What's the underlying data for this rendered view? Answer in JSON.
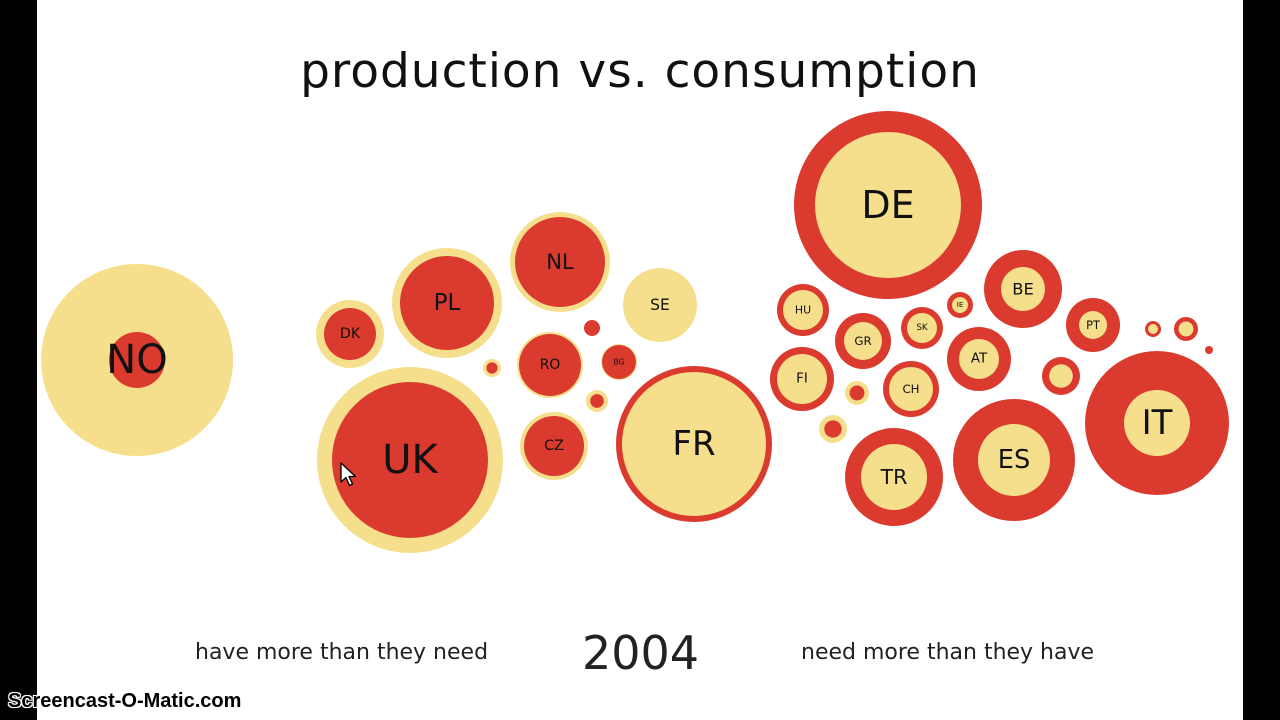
{
  "title": "production vs. consumption",
  "year": "2004",
  "left_caption": "have more than they need",
  "right_caption": "need more than they have",
  "watermark": "Screencast-O-Matic.com",
  "colors": {
    "production": "#db3a2f",
    "consumption": "#f5df8d",
    "label": "#111111"
  },
  "chart_data": {
    "type": "bubble",
    "title": "production vs. consumption",
    "year": "2004",
    "groups": [
      "have more than they need",
      "need more than they have"
    ],
    "items": [
      {
        "label": "NO",
        "group": "have more than they need",
        "outer": "consumption",
        "inner": "production",
        "outer_radius": 96,
        "inner_radius": 28
      },
      {
        "label": "DK",
        "group": "have more than they need",
        "outer": "consumption",
        "inner": "production",
        "outer_radius": 34,
        "inner_radius": 26
      },
      {
        "label": "PL",
        "group": "have more than they need",
        "outer": "consumption",
        "inner": "production",
        "outer_radius": 55,
        "inner_radius": 47
      },
      {
        "label": "NL",
        "group": "have more than they need",
        "outer": "consumption",
        "inner": "production",
        "outer_radius": 50,
        "inner_radius": 45
      },
      {
        "label": "SE",
        "group": "have more than they need",
        "outer": "consumption",
        "inner": "production",
        "outer_radius": 37,
        "inner_radius": 0
      },
      {
        "label": "RO",
        "group": "have more than they need",
        "outer": "consumption",
        "inner": "production",
        "outer_radius": 33,
        "inner_radius": 31
      },
      {
        "label": "BG",
        "group": "have more than they need",
        "outer": "consumption",
        "inner": "production",
        "outer_radius": 18,
        "inner_radius": 17
      },
      {
        "label": "CZ",
        "group": "have more than they need",
        "outer": "consumption",
        "inner": "production",
        "outer_radius": 34,
        "inner_radius": 30
      },
      {
        "label": "UK",
        "group": "have more than they need",
        "outer": "consumption",
        "inner": "production",
        "outer_radius": 93,
        "inner_radius": 78
      },
      {
        "label": "FR",
        "group": "need more than they have",
        "outer": "production",
        "inner": "consumption",
        "outer_radius": 78,
        "inner_radius": 72
      },
      {
        "label": "DE",
        "group": "need more than they have",
        "outer": "production",
        "inner": "consumption",
        "outer_radius": 94,
        "inner_radius": 73
      },
      {
        "label": "BE",
        "group": "need more than they have",
        "outer": "production",
        "inner": "consumption",
        "outer_radius": 39,
        "inner_radius": 22
      },
      {
        "label": "PT",
        "group": "need more than they have",
        "outer": "production",
        "inner": "consumption",
        "outer_radius": 27,
        "inner_radius": 14
      },
      {
        "label": "HU",
        "group": "need more than they have",
        "outer": "production",
        "inner": "consumption",
        "outer_radius": 26,
        "inner_radius": 20
      },
      {
        "label": "GR",
        "group": "need more than they have",
        "outer": "production",
        "inner": "consumption",
        "outer_radius": 28,
        "inner_radius": 19
      },
      {
        "label": "SK",
        "group": "need more than they have",
        "outer": "production",
        "inner": "consumption",
        "outer_radius": 21,
        "inner_radius": 15
      },
      {
        "label": "AT",
        "group": "need more than they have",
        "outer": "production",
        "inner": "consumption",
        "outer_radius": 32,
        "inner_radius": 20
      },
      {
        "label": "FI",
        "group": "need more than they have",
        "outer": "production",
        "inner": "consumption",
        "outer_radius": 32,
        "inner_radius": 25
      },
      {
        "label": "CH",
        "group": "need more than they have",
        "outer": "production",
        "inner": "consumption",
        "outer_radius": 28,
        "inner_radius": 22
      },
      {
        "label": "IE",
        "group": "need more than they have",
        "outer": "production",
        "inner": "consumption",
        "outer_radius": 13,
        "inner_radius": 8
      },
      {
        "label": "IT",
        "group": "need more than they have",
        "outer": "production",
        "inner": "consumption",
        "outer_radius": 72,
        "inner_radius": 33
      },
      {
        "label": "ES",
        "group": "need more than they have",
        "outer": "production",
        "inner": "consumption",
        "outer_radius": 61,
        "inner_radius": 36
      },
      {
        "label": "TR",
        "group": "need more than they have",
        "outer": "production",
        "inner": "consumption",
        "outer_radius": 49,
        "inner_radius": 33
      }
    ]
  }
}
